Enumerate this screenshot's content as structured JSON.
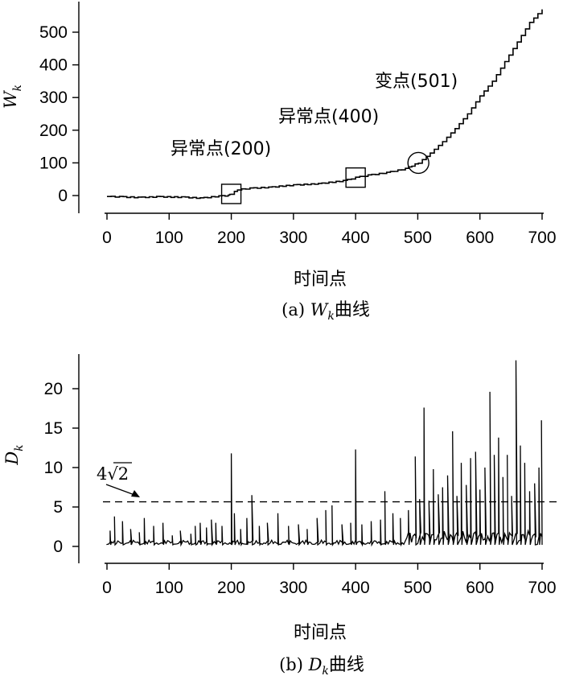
{
  "chart_data": [
    {
      "type": "line",
      "panel": "a",
      "ylabel": "W",
      "ylabel_sub": "k",
      "xlabel": "时间点",
      "caption_prefix": "(a) ",
      "caption_var": "W",
      "caption_sub": "k",
      "caption_suffix": "曲线",
      "xlim": [
        0,
        700
      ],
      "ylim": [
        0,
        570
      ],
      "xticks": [
        0,
        100,
        200,
        300,
        400,
        500,
        600,
        700
      ],
      "yticks": [
        0,
        100,
        200,
        300,
        400,
        500
      ],
      "series": [
        {
          "x": [
            0,
            20,
            50,
            80,
            120,
            150,
            180,
            195,
            200,
            210,
            230,
            260,
            300,
            340,
            380,
            400,
            420,
            450,
            480,
            501,
            520,
            540,
            560,
            580,
            600,
            620,
            640,
            660,
            680,
            700
          ],
          "y": [
            -3,
            -4,
            -6,
            -4,
            -5,
            -8,
            -2,
            0,
            5,
            18,
            22,
            25,
            32,
            36,
            45,
            55,
            62,
            70,
            82,
            100,
            130,
            165,
            205,
            250,
            305,
            350,
            410,
            470,
            530,
            570
          ]
        }
      ],
      "annotations": [
        {
          "label": "异常点(200)",
          "x": 200,
          "y": 5,
          "marker": "square"
        },
        {
          "label": "异常点(400)",
          "x": 400,
          "y": 55,
          "marker": "square"
        },
        {
          "label": "变点(501)",
          "x": 501,
          "y": 100,
          "marker": "circle"
        }
      ]
    },
    {
      "type": "line",
      "panel": "b",
      "ylabel": "D",
      "ylabel_sub": "k",
      "xlabel": "时间点",
      "caption_prefix": "(b) ",
      "caption_var": "D",
      "caption_sub": "k",
      "caption_suffix": "曲线",
      "xlim": [
        0,
        700
      ],
      "ylim": [
        0,
        24
      ],
      "xticks": [
        0,
        100,
        200,
        300,
        400,
        500,
        600,
        700
      ],
      "yticks": [
        0,
        5,
        10,
        15,
        20
      ],
      "threshold": 5.66,
      "threshold_label": "4√2",
      "spikes": [
        {
          "x": 5,
          "y": 2.0
        },
        {
          "x": 12,
          "y": 3.8
        },
        {
          "x": 25,
          "y": 3.2
        },
        {
          "x": 38,
          "y": 2.2
        },
        {
          "x": 52,
          "y": 1.8
        },
        {
          "x": 60,
          "y": 3.6
        },
        {
          "x": 75,
          "y": 2.6
        },
        {
          "x": 90,
          "y": 3.0
        },
        {
          "x": 105,
          "y": 1.4
        },
        {
          "x": 118,
          "y": 2.0
        },
        {
          "x": 135,
          "y": 1.6
        },
        {
          "x": 142,
          "y": 2.6
        },
        {
          "x": 150,
          "y": 3.0
        },
        {
          "x": 160,
          "y": 2.4
        },
        {
          "x": 168,
          "y": 3.4
        },
        {
          "x": 175,
          "y": 3.0
        },
        {
          "x": 185,
          "y": 2.6
        },
        {
          "x": 200,
          "y": 11.8
        },
        {
          "x": 205,
          "y": 4.2
        },
        {
          "x": 215,
          "y": 2.2
        },
        {
          "x": 225,
          "y": 3.6
        },
        {
          "x": 233,
          "y": 6.5
        },
        {
          "x": 245,
          "y": 2.6
        },
        {
          "x": 258,
          "y": 3.0
        },
        {
          "x": 275,
          "y": 4.2
        },
        {
          "x": 292,
          "y": 2.6
        },
        {
          "x": 308,
          "y": 2.8
        },
        {
          "x": 322,
          "y": 2.2
        },
        {
          "x": 338,
          "y": 3.6
        },
        {
          "x": 352,
          "y": 4.6
        },
        {
          "x": 362,
          "y": 5.2
        },
        {
          "x": 378,
          "y": 2.8
        },
        {
          "x": 392,
          "y": 3.0
        },
        {
          "x": 400,
          "y": 12.3
        },
        {
          "x": 410,
          "y": 2.8
        },
        {
          "x": 425,
          "y": 3.2
        },
        {
          "x": 440,
          "y": 3.4
        },
        {
          "x": 447,
          "y": 7.0
        },
        {
          "x": 460,
          "y": 4.2
        },
        {
          "x": 472,
          "y": 3.6
        },
        {
          "x": 485,
          "y": 4.6
        },
        {
          "x": 496,
          "y": 11.4
        },
        {
          "x": 503,
          "y": 6.0
        },
        {
          "x": 510,
          "y": 17.6
        },
        {
          "x": 518,
          "y": 5.8
        },
        {
          "x": 525,
          "y": 9.8
        },
        {
          "x": 533,
          "y": 6.6
        },
        {
          "x": 540,
          "y": 7.5
        },
        {
          "x": 548,
          "y": 9.0
        },
        {
          "x": 556,
          "y": 14.6
        },
        {
          "x": 563,
          "y": 6.4
        },
        {
          "x": 570,
          "y": 10.6
        },
        {
          "x": 578,
          "y": 7.8
        },
        {
          "x": 585,
          "y": 11.2
        },
        {
          "x": 593,
          "y": 12.0
        },
        {
          "x": 600,
          "y": 7.2
        },
        {
          "x": 608,
          "y": 10.0
        },
        {
          "x": 616,
          "y": 19.6
        },
        {
          "x": 623,
          "y": 11.6
        },
        {
          "x": 630,
          "y": 13.8
        },
        {
          "x": 637,
          "y": 8.8
        },
        {
          "x": 644,
          "y": 11.6
        },
        {
          "x": 651,
          "y": 6.4
        },
        {
          "x": 658,
          "y": 23.6
        },
        {
          "x": 665,
          "y": 12.8
        },
        {
          "x": 672,
          "y": 10.6
        },
        {
          "x": 680,
          "y": 7.0
        },
        {
          "x": 688,
          "y": 8.0
        },
        {
          "x": 695,
          "y": 10.0
        },
        {
          "x": 699,
          "y": 16.0
        }
      ]
    }
  ]
}
